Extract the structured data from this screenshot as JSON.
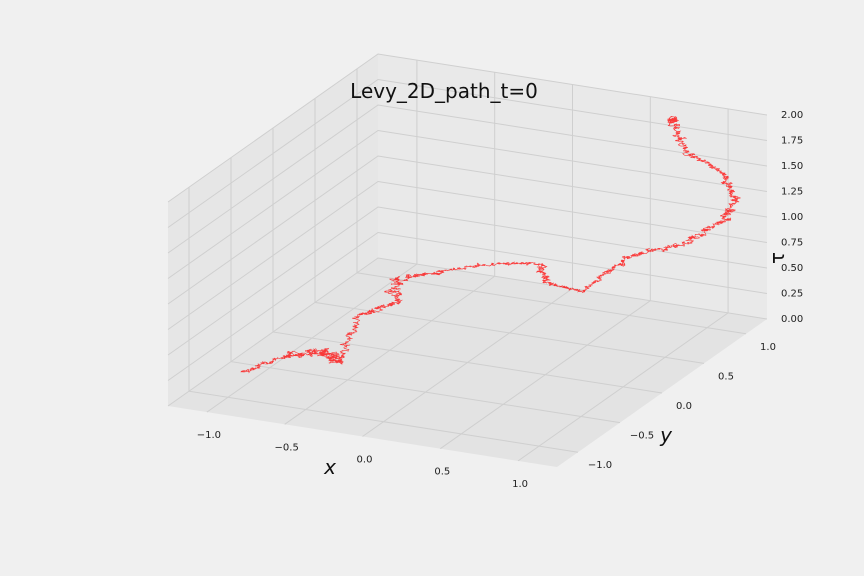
{
  "chart_data": {
    "type": "line",
    "title": "Levy_2D_path_t=0",
    "xlabel": "x",
    "ylabel": "y",
    "zlabel": "τ",
    "xlim": [
      -1.25,
      1.25
    ],
    "ylim": [
      -1.25,
      1.25
    ],
    "zlim": [
      0,
      2
    ],
    "x_ticks": [
      "−1.0",
      "−0.5",
      "0.0",
      "0.5",
      "1.0"
    ],
    "y_ticks": [
      "−1.0",
      "−0.5",
      "0.0",
      "0.5",
      "1.0"
    ],
    "z_ticks": [
      "0.00",
      "0.25",
      "0.50",
      "0.75",
      "1.00",
      "1.25",
      "1.50",
      "1.75",
      "2.00"
    ],
    "grid": true,
    "series": [
      {
        "color": "#ff0000",
        "clusters": [
          {
            "x": -1.1,
            "y": -0.65,
            "tau": 0.02,
            "size": 0.18
          },
          {
            "x": -0.95,
            "y": -0.35,
            "tau": 0.05,
            "size": 0.28
          },
          {
            "x": -0.75,
            "y": -0.3,
            "tau": 0.1,
            "size": 0.35
          },
          {
            "x": -0.55,
            "y": -0.5,
            "tau": 0.15,
            "size": 0.22
          },
          {
            "x": -0.75,
            "y": 0.1,
            "tau": 0.22,
            "size": 0.2
          },
          {
            "x": -0.6,
            "y": 0.3,
            "tau": 0.28,
            "size": 0.25
          },
          {
            "x": -0.75,
            "y": 0.55,
            "tau": 0.32,
            "size": 0.22
          },
          {
            "x": -0.5,
            "y": 0.7,
            "tau": 0.38,
            "size": 0.12
          },
          {
            "x": -0.25,
            "y": 0.85,
            "tau": 0.42,
            "size": 0.12
          },
          {
            "x": 0.0,
            "y": 0.85,
            "tau": 0.48,
            "size": 0.18
          },
          {
            "x": 0.25,
            "y": 0.5,
            "tau": 0.55,
            "size": 0.12
          },
          {
            "x": 0.55,
            "y": 0.35,
            "tau": 0.62,
            "size": 0.1
          },
          {
            "x": 0.65,
            "y": 0.45,
            "tau": 0.78,
            "size": 0.15
          },
          {
            "x": 0.75,
            "y": 0.55,
            "tau": 0.9,
            "size": 0.2
          },
          {
            "x": 1.0,
            "y": 0.7,
            "tau": 1.0,
            "size": 0.22
          },
          {
            "x": 1.15,
            "y": 0.95,
            "tau": 1.12,
            "size": 0.2
          },
          {
            "x": 1.2,
            "y": 0.95,
            "tau": 1.35,
            "size": 0.18
          },
          {
            "x": 1.1,
            "y": 1.0,
            "tau": 1.55,
            "size": 0.15
          },
          {
            "x": 0.9,
            "y": 0.95,
            "tau": 1.72,
            "size": 0.22
          },
          {
            "x": 0.75,
            "y": 1.05,
            "tau": 1.95,
            "size": 0.18
          }
        ]
      }
    ]
  }
}
